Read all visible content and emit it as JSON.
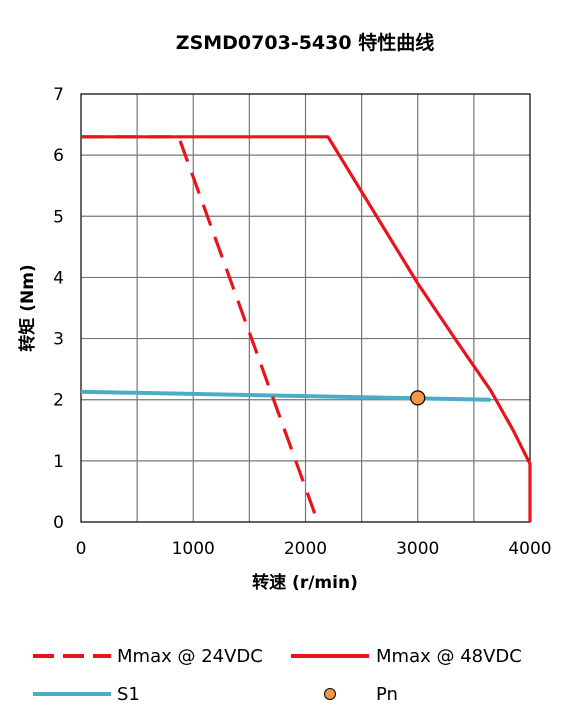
{
  "chart_data": {
    "type": "line",
    "title": "ZSMD0703-5430 特性曲线",
    "xlabel": "转速 (r/min)",
    "ylabel": "转矩 (Nm)",
    "xlim": [
      0,
      4000
    ],
    "ylim": [
      0,
      7
    ],
    "xticks": [
      "0",
      "1000",
      "2000",
      "3000",
      "4000"
    ],
    "yticks": [
      "0",
      "1",
      "2",
      "3",
      "4",
      "5",
      "6",
      "7"
    ],
    "grid": true,
    "legend_position": "bottom",
    "series": [
      {
        "name": "Mmax @ 24VDC",
        "style": "dashed",
        "color": "#e8141b",
        "x": [
          0,
          870,
          2110
        ],
        "y": [
          6.3,
          6.3,
          0
        ]
      },
      {
        "name": "Mmax @ 48VDC",
        "style": "solid",
        "color": "#e8141b",
        "x": [
          0,
          2200,
          2600,
          3000,
          3350,
          3650,
          3850,
          4000,
          4000
        ],
        "y": [
          6.3,
          6.3,
          5.1,
          3.9,
          2.95,
          2.15,
          1.5,
          0.95,
          0
        ]
      },
      {
        "name": "S1",
        "style": "solid",
        "color": "#4bacc6",
        "x": [
          0,
          3650
        ],
        "y": [
          2.13,
          2.0
        ]
      },
      {
        "name": "Pn",
        "style": "marker",
        "color": "#f79646",
        "x": [
          3000
        ],
        "y": [
          2.03
        ]
      }
    ]
  }
}
